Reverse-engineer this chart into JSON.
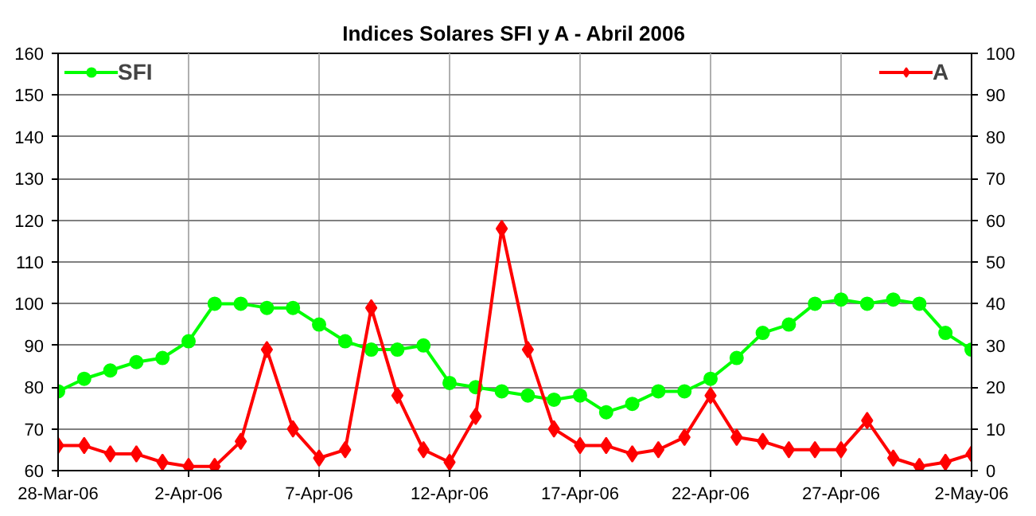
{
  "chart_data": {
    "type": "line",
    "title": "Indices Solares SFI y A - Abril 2006",
    "x": [
      "2006-03-28",
      "2006-03-29",
      "2006-03-30",
      "2006-03-31",
      "2006-04-01",
      "2006-04-02",
      "2006-04-03",
      "2006-04-04",
      "2006-04-05",
      "2006-04-06",
      "2006-04-07",
      "2006-04-08",
      "2006-04-09",
      "2006-04-10",
      "2006-04-11",
      "2006-04-12",
      "2006-04-13",
      "2006-04-14",
      "2006-04-15",
      "2006-04-16",
      "2006-04-17",
      "2006-04-18",
      "2006-04-19",
      "2006-04-20",
      "2006-04-21",
      "2006-04-22",
      "2006-04-23",
      "2006-04-24",
      "2006-04-25",
      "2006-04-26",
      "2006-04-27",
      "2006-04-28",
      "2006-04-29",
      "2006-04-30",
      "2006-05-01",
      "2006-05-02"
    ],
    "series": [
      {
        "name": "SFI",
        "color": "#00ff00",
        "marker": "circle",
        "values": [
          79,
          82,
          84,
          86,
          87,
          91,
          100,
          100,
          99,
          99,
          95,
          91,
          89,
          89,
          90,
          81,
          80,
          79,
          78,
          77,
          78,
          74,
          76,
          79,
          79,
          82,
          87,
          93,
          95,
          100,
          101,
          100,
          101,
          100,
          93,
          89
        ]
      },
      {
        "name": "A",
        "color": "#ff0000",
        "marker": "diamond",
        "axis": "y2",
        "values": [
          6,
          6,
          4,
          4,
          2,
          1,
          1,
          7,
          29,
          10,
          3,
          5,
          39,
          18,
          5,
          2,
          13,
          58,
          29,
          10,
          6,
          6,
          4,
          5,
          8,
          18,
          8,
          7,
          5,
          5,
          5,
          12,
          3,
          1,
          2,
          4
        ]
      }
    ],
    "xlim": [
      "2006-03-28",
      "2006-05-02"
    ],
    "xticks": [
      {
        "value": "2006-03-28",
        "label": "28-Mar-06"
      },
      {
        "value": "2006-04-02",
        "label": "2-Apr-06"
      },
      {
        "value": "2006-04-07",
        "label": "7-Apr-06"
      },
      {
        "value": "2006-04-12",
        "label": "12-Apr-06"
      },
      {
        "value": "2006-04-17",
        "label": "17-Apr-06"
      },
      {
        "value": "2006-04-22",
        "label": "22-Apr-06"
      },
      {
        "value": "2006-04-27",
        "label": "27-Apr-06"
      },
      {
        "value": "2006-05-02",
        "label": "2-May-06"
      }
    ],
    "ylim": [
      60,
      160
    ],
    "yticks": [
      60,
      70,
      80,
      90,
      100,
      110,
      120,
      130,
      140,
      150,
      160
    ],
    "y2lim": [
      0,
      100
    ],
    "y2ticks": [
      0,
      10,
      20,
      30,
      40,
      50,
      60,
      70,
      80,
      90,
      100
    ],
    "grid": true,
    "legend": "top"
  }
}
